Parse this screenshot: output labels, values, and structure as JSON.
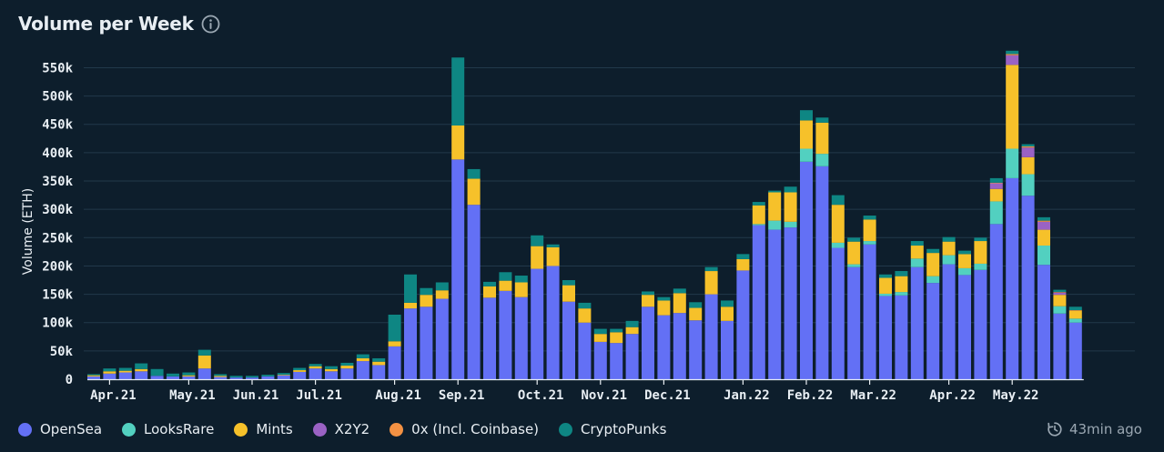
{
  "header": {
    "title": "Volume per Week"
  },
  "footer": {
    "updated": "43min ago"
  },
  "colors": {
    "background": "#0d1e2c",
    "grid": "#22394a",
    "axis_text": "#e8eef3"
  },
  "legend": [
    {
      "label": "OpenSea",
      "color": "#6370f5"
    },
    {
      "label": "LooksRare",
      "color": "#52d0c0"
    },
    {
      "label": "Mints",
      "color": "#f6c12a"
    },
    {
      "label": "X2Y2",
      "color": "#9a62c4"
    },
    {
      "label": "0x (Incl. Coinbase)",
      "color": "#f39143"
    },
    {
      "label": "CryptoPunks",
      "color": "#0e8683"
    }
  ],
  "chart_data": {
    "type": "bar",
    "stacked": true,
    "title": "Volume per Week",
    "xlabel": "",
    "ylabel": "Volume (ETH)",
    "ylim": [
      0,
      570000
    ],
    "yticks": [
      0,
      50000,
      100000,
      150000,
      200000,
      250000,
      300000,
      350000,
      400000,
      450000,
      500000,
      550000
    ],
    "ytick_labels": [
      "0",
      "50k",
      "100k",
      "150k",
      "200k",
      "250k",
      "300k",
      "350k",
      "400k",
      "450k",
      "500k",
      "550k"
    ],
    "x_labels": [
      {
        "label": "Apr.21",
        "index": 1
      },
      {
        "label": "May.21",
        "index": 6
      },
      {
        "label": "Jun.21",
        "index": 10
      },
      {
        "label": "Jul.21",
        "index": 14
      },
      {
        "label": "Aug.21",
        "index": 19
      },
      {
        "label": "Sep.21",
        "index": 23
      },
      {
        "label": "Oct.21",
        "index": 28
      },
      {
        "label": "Nov.21",
        "index": 32
      },
      {
        "label": "Dec.21",
        "index": 36
      },
      {
        "label": "Jan.22",
        "index": 41
      },
      {
        "label": "Feb.22",
        "index": 45
      },
      {
        "label": "Mar.22",
        "index": 49
      },
      {
        "label": "Apr.22",
        "index": 54
      },
      {
        "label": "May.22",
        "index": 58
      }
    ],
    "series": [
      {
        "name": "OpenSea",
        "values": [
          5000,
          10000,
          12000,
          14000,
          6000,
          5000,
          5000,
          19000,
          4000,
          3000,
          3000,
          5000,
          7000,
          13000,
          19000,
          14000,
          19000,
          32000,
          25000,
          58000,
          125000,
          128000,
          142000,
          388000,
          308000,
          144000,
          156000,
          145000,
          195000,
          200000,
          137000,
          100000,
          66000,
          64000,
          80000,
          128000,
          113000,
          117000,
          104000,
          150000,
          103000,
          192000,
          272000,
          264000,
          268000,
          384000,
          376000,
          232000,
          198000,
          238000,
          147000,
          148000,
          198000,
          170000,
          203000,
          184000,
          193000,
          274000,
          355000,
          324000,
          202000,
          116000,
          100000
        ]
      },
      {
        "name": "LooksRare",
        "values": [
          0,
          0,
          0,
          0,
          0,
          0,
          0,
          0,
          0,
          0,
          0,
          0,
          0,
          0,
          0,
          0,
          0,
          0,
          0,
          0,
          0,
          0,
          0,
          0,
          0,
          0,
          0,
          0,
          0,
          0,
          0,
          0,
          0,
          0,
          0,
          0,
          0,
          0,
          0,
          0,
          0,
          0,
          2000,
          16000,
          10000,
          23000,
          22000,
          9000,
          5000,
          6000,
          4000,
          6000,
          15000,
          12000,
          16000,
          12000,
          11000,
          40000,
          52000,
          38000,
          34000,
          13000,
          7000
        ]
      },
      {
        "name": "Mints",
        "values": [
          2000,
          4000,
          3000,
          4000,
          0,
          0,
          2000,
          23000,
          2000,
          0,
          0,
          0,
          1000,
          3000,
          4000,
          4000,
          5000,
          5000,
          6000,
          9000,
          10000,
          21000,
          15000,
          60000,
          46000,
          20000,
          18000,
          26000,
          40000,
          33000,
          29000,
          25000,
          14000,
          19000,
          12000,
          21000,
          26000,
          35000,
          22000,
          41000,
          25000,
          20000,
          33000,
          50000,
          52000,
          50000,
          55000,
          67000,
          40000,
          38000,
          28000,
          28000,
          23000,
          41000,
          24000,
          25000,
          40000,
          22000,
          148000,
          30000,
          28000,
          20000,
          14000
        ]
      },
      {
        "name": "X2Y2",
        "values": [
          0,
          0,
          0,
          0,
          0,
          0,
          0,
          0,
          0,
          0,
          0,
          0,
          0,
          0,
          0,
          0,
          0,
          0,
          0,
          0,
          0,
          0,
          0,
          0,
          0,
          0,
          0,
          0,
          0,
          0,
          0,
          0,
          0,
          0,
          0,
          0,
          0,
          0,
          0,
          0,
          0,
          0,
          0,
          0,
          0,
          0,
          0,
          0,
          0,
          0,
          0,
          0,
          0,
          0,
          0,
          0,
          0,
          10000,
          17000,
          17000,
          14000,
          4000,
          0
        ]
      },
      {
        "name": "0x (Incl. Coinbase)",
        "values": [
          0,
          0,
          0,
          0,
          0,
          0,
          0,
          0,
          0,
          0,
          0,
          0,
          0,
          0,
          0,
          0,
          0,
          0,
          0,
          0,
          0,
          0,
          0,
          0,
          0,
          0,
          0,
          0,
          0,
          0,
          0,
          0,
          0,
          0,
          0,
          0,
          0,
          0,
          0,
          0,
          0,
          0,
          0,
          0,
          0,
          0,
          0,
          0,
          0,
          0,
          0,
          0,
          0,
          0,
          0,
          0,
          0,
          1000,
          2000,
          2000,
          2000,
          1000,
          1000
        ]
      },
      {
        "name": "CryptoPunks",
        "values": [
          2000,
          5000,
          5000,
          10000,
          12000,
          5000,
          5000,
          10000,
          3000,
          3000,
          3000,
          3000,
          3000,
          4000,
          4000,
          5000,
          5000,
          7000,
          6000,
          47000,
          50000,
          12000,
          14000,
          120000,
          17000,
          8000,
          15000,
          12000,
          19000,
          5000,
          9000,
          10000,
          9000,
          6000,
          11000,
          6000,
          6000,
          8000,
          10000,
          7000,
          11000,
          9000,
          6000,
          3000,
          10000,
          18000,
          9000,
          17000,
          7000,
          7000,
          6000,
          9000,
          8000,
          7000,
          8000,
          6000,
          6000,
          8000,
          6000,
          4000,
          6000,
          4000,
          6000
        ]
      }
    ]
  }
}
